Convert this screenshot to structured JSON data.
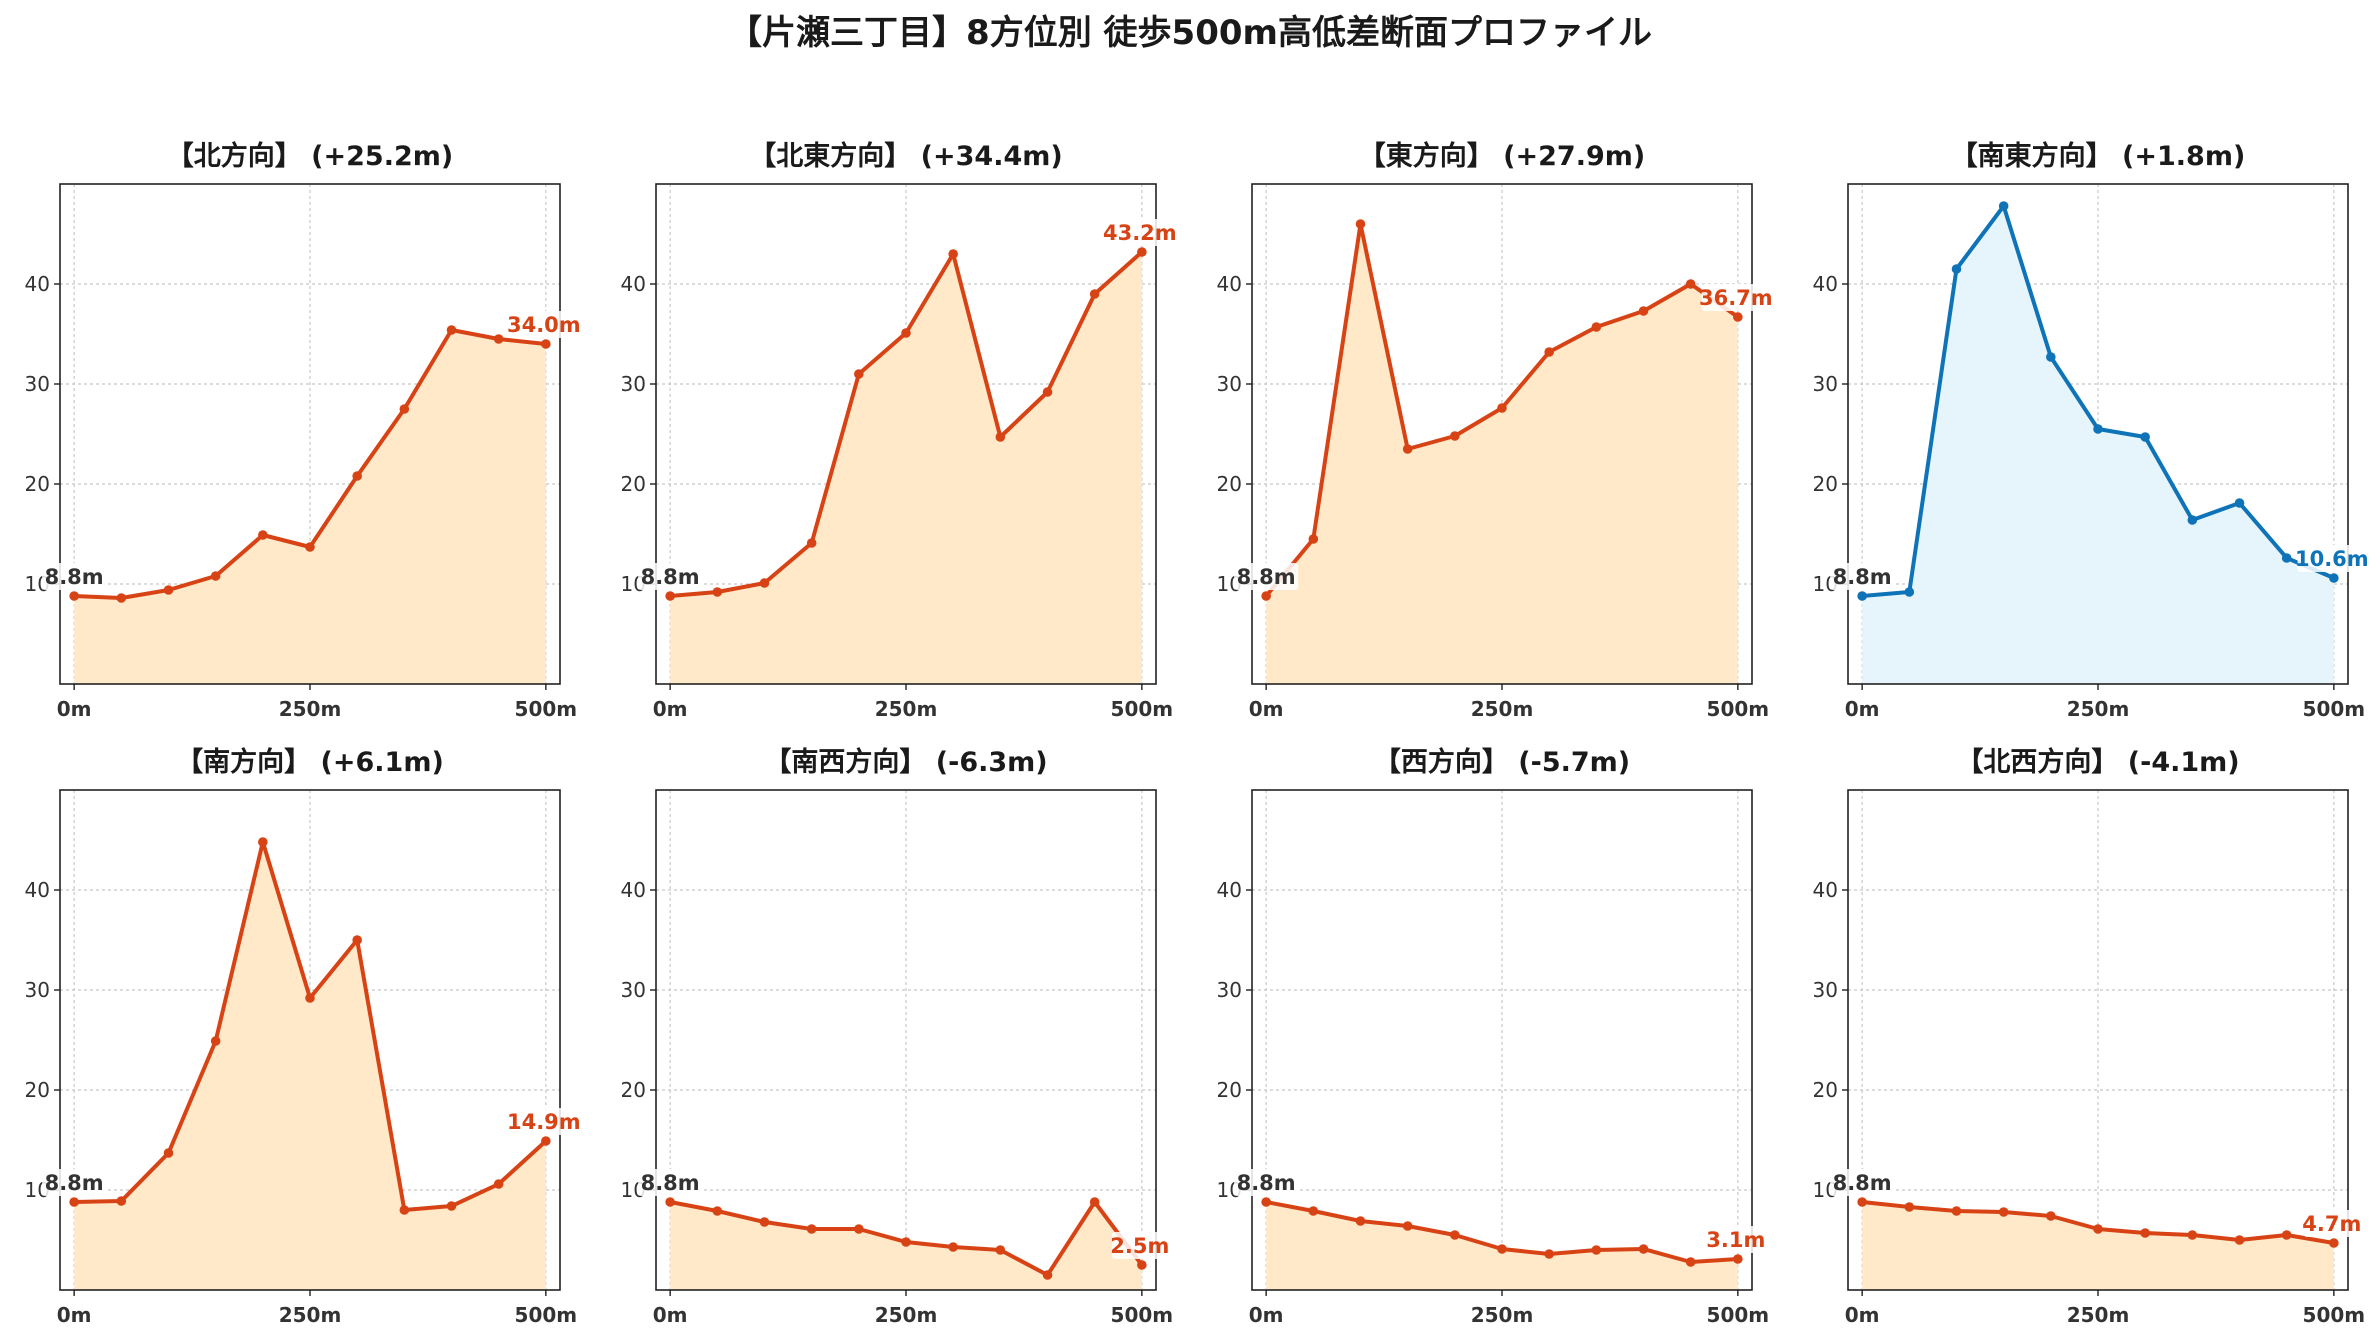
{
  "title": "【片瀬三丁目】8方位別 徒歩500m高低差断面プロファイル",
  "colors": {
    "up_line": "#d84315",
    "up_fill": "#ffe9c9",
    "down_line": "#0f73b8",
    "down_fill": "#e6f5fc",
    "start_label": "#333333"
  },
  "chart_data": [
    {
      "type": "area",
      "title": "【北方向】 (+25.2m)",
      "x": [
        0,
        50,
        100,
        150,
        200,
        250,
        300,
        350,
        400,
        450,
        500
      ],
      "values": [
        8.8,
        8.6,
        9.4,
        10.8,
        14.9,
        13.7,
        20.8,
        27.5,
        35.4,
        34.5,
        34.0
      ],
      "start_label": "8.8m",
      "end_label": "34.0m",
      "style": "up",
      "xticks": [
        "0m",
        "250m",
        "500m"
      ],
      "yticks": [
        10,
        20,
        30,
        40
      ],
      "xlim": [
        -15,
        515
      ],
      "ylim": [
        0,
        50
      ],
      "grid": true
    },
    {
      "type": "area",
      "title": "【北東方向】 (+34.4m)",
      "x": [
        0,
        50,
        100,
        150,
        200,
        250,
        300,
        350,
        400,
        450,
        500
      ],
      "values": [
        8.8,
        9.2,
        10.1,
        14.1,
        31.0,
        35.1,
        43.0,
        24.7,
        29.2,
        39.0,
        43.2
      ],
      "start_label": "8.8m",
      "end_label": "43.2m",
      "style": "up",
      "xticks": [
        "0m",
        "250m",
        "500m"
      ],
      "yticks": [
        10,
        20,
        30,
        40
      ],
      "xlim": [
        -15,
        515
      ],
      "ylim": [
        0,
        50
      ],
      "grid": true
    },
    {
      "type": "area",
      "title": "【東方向】 (+27.9m)",
      "x": [
        0,
        50,
        100,
        150,
        200,
        250,
        300,
        350,
        400,
        450,
        500
      ],
      "values": [
        8.8,
        14.5,
        46.0,
        23.5,
        24.8,
        27.6,
        33.2,
        35.7,
        37.3,
        40.0,
        36.7
      ],
      "start_label": "8.8m",
      "end_label": "36.7m",
      "style": "up",
      "xticks": [
        "0m",
        "250m",
        "500m"
      ],
      "yticks": [
        10,
        20,
        30,
        40
      ],
      "xlim": [
        -15,
        515
      ],
      "ylim": [
        0,
        50
      ],
      "grid": true
    },
    {
      "type": "area",
      "title": "【南東方向】 (+1.8m)",
      "x": [
        0,
        50,
        100,
        150,
        200,
        250,
        300,
        350,
        400,
        450,
        500
      ],
      "values": [
        8.8,
        9.2,
        41.5,
        47.8,
        32.7,
        25.5,
        24.7,
        16.4,
        18.1,
        12.6,
        10.6
      ],
      "start_label": "8.8m",
      "end_label": "10.6m",
      "style": "down",
      "xticks": [
        "0m",
        "250m",
        "500m"
      ],
      "yticks": [
        10,
        20,
        30,
        40
      ],
      "xlim": [
        -15,
        515
      ],
      "ylim": [
        0,
        50
      ],
      "grid": true
    },
    {
      "type": "area",
      "title": "【南方向】 (+6.1m)",
      "x": [
        0,
        50,
        100,
        150,
        200,
        250,
        300,
        350,
        400,
        450,
        500
      ],
      "values": [
        8.8,
        8.9,
        13.7,
        24.9,
        44.8,
        29.2,
        35.0,
        8.0,
        8.4,
        10.6,
        14.9
      ],
      "start_label": "8.8m",
      "end_label": "14.9m",
      "style": "up",
      "xticks": [
        "0m",
        "250m",
        "500m"
      ],
      "yticks": [
        10,
        20,
        30,
        40
      ],
      "xlim": [
        -15,
        515
      ],
      "ylim": [
        0,
        50
      ],
      "grid": true
    },
    {
      "type": "area",
      "title": "【南西方向】 (-6.3m)",
      "x": [
        0,
        50,
        100,
        150,
        200,
        250,
        300,
        350,
        400,
        450,
        500
      ],
      "values": [
        8.8,
        7.9,
        6.8,
        6.1,
        6.1,
        4.8,
        4.3,
        4.0,
        1.5,
        8.8,
        2.5
      ],
      "start_label": "8.8m",
      "end_label": "2.5m",
      "style": "up",
      "xticks": [
        "0m",
        "250m",
        "500m"
      ],
      "yticks": [
        10,
        20,
        30,
        40
      ],
      "xlim": [
        -15,
        515
      ],
      "ylim": [
        0,
        50
      ],
      "grid": true
    },
    {
      "type": "area",
      "title": "【西方向】 (-5.7m)",
      "x": [
        0,
        50,
        100,
        150,
        200,
        250,
        300,
        350,
        400,
        450,
        500
      ],
      "values": [
        8.8,
        7.9,
        6.9,
        6.4,
        5.5,
        4.1,
        3.6,
        4.0,
        4.1,
        2.8,
        3.1
      ],
      "start_label": "8.8m",
      "end_label": "3.1m",
      "style": "up",
      "xticks": [
        "0m",
        "250m",
        "500m"
      ],
      "yticks": [
        10,
        20,
        30,
        40
      ],
      "xlim": [
        -15,
        515
      ],
      "ylim": [
        0,
        50
      ],
      "grid": true
    },
    {
      "type": "area",
      "title": "【北西方向】 (-4.1m)",
      "x": [
        0,
        50,
        100,
        150,
        200,
        250,
        300,
        350,
        400,
        450,
        500
      ],
      "values": [
        8.8,
        8.3,
        7.9,
        7.8,
        7.4,
        6.1,
        5.7,
        5.5,
        5.0,
        5.5,
        4.7
      ],
      "start_label": "8.8m",
      "end_label": "4.7m",
      "style": "up",
      "xticks": [
        "0m",
        "250m",
        "500m"
      ],
      "yticks": [
        10,
        20,
        30,
        40
      ],
      "xlim": [
        -15,
        515
      ],
      "ylim": [
        0,
        50
      ],
      "grid": true
    }
  ]
}
